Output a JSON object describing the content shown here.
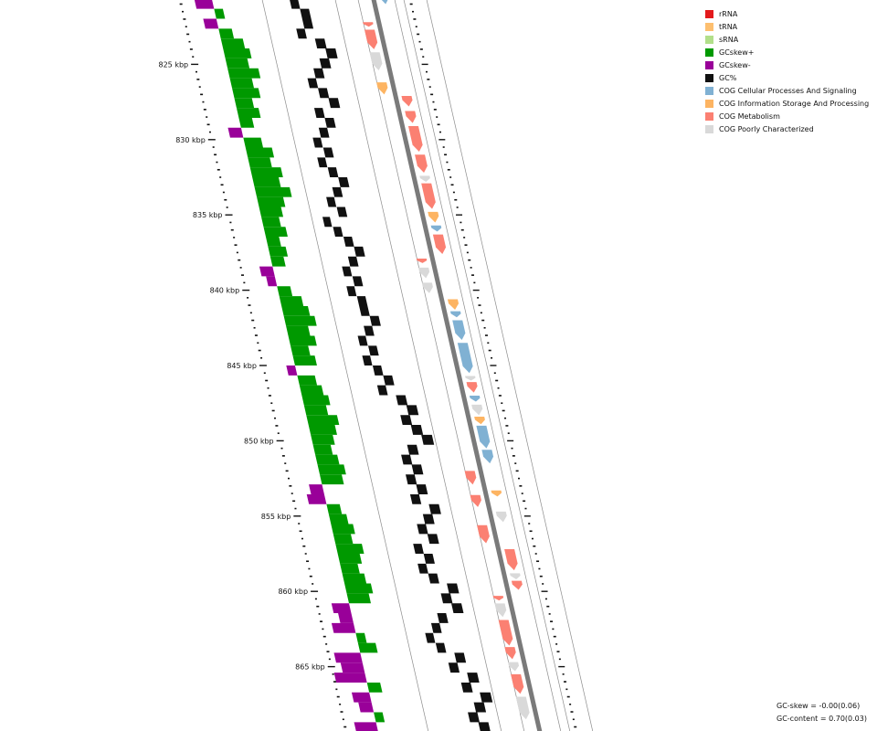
{
  "legend": [
    {
      "name": "rRNA",
      "color": "#e31a1c"
    },
    {
      "name": "tRNA",
      "color": "#fdbf6f"
    },
    {
      "name": "sRNA",
      "color": "#b2df8a"
    },
    {
      "name": "GCskew+",
      "color": "#009900"
    },
    {
      "name": "GCskew-",
      "color": "#990099"
    },
    {
      "name": "GC%",
      "color": "#111111"
    },
    {
      "name": "COG Cellular Processes And Signaling",
      "color": "#80b1d3"
    },
    {
      "name": "COG Information Storage And Processing",
      "color": "#fdb462"
    },
    {
      "name": "COG Metabolism",
      "color": "#fb8072"
    },
    {
      "name": "COG Poorly Characterized",
      "color": "#d9d9d9"
    }
  ],
  "kbp_labels": [
    "825 kbp",
    "830 kbp",
    "835 kbp",
    "840 kbp",
    "845 kbp",
    "850 kbp",
    "855 kbp",
    "860 kbp",
    "865 kbp"
  ],
  "stats": {
    "gc_skew": "GC-skew = -0.00(0.06)",
    "gc_content": "GC-content = 0.70(0.03)"
  },
  "features": [
    {
      "strand": 1,
      "cog": "COG Cellular Processes And Signaling",
      "start": 820.0,
      "end": 821.0
    },
    {
      "strand": -1,
      "cog": "COG Metabolism",
      "start": 822.2,
      "end": 822.5
    },
    {
      "strand": -1,
      "cog": "COG Metabolism",
      "start": 822.7,
      "end": 824.0
    },
    {
      "strand": -1,
      "cog": "COG Poorly Characterized",
      "start": 824.2,
      "end": 825.4
    },
    {
      "strand": -1,
      "cog": "COG Information Storage And Processing",
      "start": 826.2,
      "end": 827.0
    },
    {
      "strand": 1,
      "cog": "COG Metabolism",
      "start": 827.1,
      "end": 827.8
    },
    {
      "strand": 1,
      "cog": "COG Metabolism",
      "start": 828.1,
      "end": 828.9
    },
    {
      "strand": 1,
      "cog": "COG Metabolism",
      "start": 829.1,
      "end": 830.8
    },
    {
      "strand": 1,
      "cog": "COG Metabolism",
      "start": 831.0,
      "end": 832.2
    },
    {
      "strand": 1,
      "cog": "COG Poorly Characterized",
      "start": 832.4,
      "end": 832.8
    },
    {
      "strand": 1,
      "cog": "COG Metabolism",
      "start": 832.9,
      "end": 834.6
    },
    {
      "strand": 1,
      "cog": "COG Information Storage And Processing",
      "start": 834.8,
      "end": 835.5
    },
    {
      "strand": 1,
      "cog": "COG Cellular Processes And Signaling",
      "start": 835.7,
      "end": 836.1
    },
    {
      "strand": 1,
      "cog": "COG Metabolism",
      "start": 836.3,
      "end": 837.6
    },
    {
      "strand": -1,
      "cog": "COG Metabolism",
      "start": 837.9,
      "end": 838.2
    },
    {
      "strand": -1,
      "cog": "COG Poorly Characterized",
      "start": 838.5,
      "end": 839.2
    },
    {
      "strand": -1,
      "cog": "COG Poorly Characterized",
      "start": 839.5,
      "end": 840.2
    },
    {
      "strand": 1,
      "cog": "COG Information Storage And Processing",
      "start": 840.6,
      "end": 841.3
    },
    {
      "strand": 1,
      "cog": "COG Cellular Processes And Signaling",
      "start": 841.4,
      "end": 841.8
    },
    {
      "strand": 1,
      "cog": "COG Cellular Processes And Signaling",
      "start": 842.0,
      "end": 843.3
    },
    {
      "strand": 1,
      "cog": "COG Cellular Processes And Signaling",
      "start": 843.5,
      "end": 845.5
    },
    {
      "strand": 1,
      "cog": "COG Poorly Characterized",
      "start": 845.7,
      "end": 846.0
    },
    {
      "strand": 1,
      "cog": "COG Metabolism",
      "start": 846.1,
      "end": 846.8
    },
    {
      "strand": 1,
      "cog": "COG Cellular Processes And Signaling",
      "start": 847.0,
      "end": 847.4
    },
    {
      "strand": 1,
      "cog": "COG Poorly Characterized",
      "start": 847.6,
      "end": 848.3
    },
    {
      "strand": 1,
      "cog": "COG Information Storage And Processing",
      "start": 848.4,
      "end": 848.9
    },
    {
      "strand": 1,
      "cog": "COG Cellular Processes And Signaling",
      "start": 849.0,
      "end": 850.5
    },
    {
      "strand": 1,
      "cog": "COG Cellular Processes And Signaling",
      "start": 850.6,
      "end": 851.5
    },
    {
      "strand": -1,
      "cog": "COG Metabolism",
      "start": 852.0,
      "end": 852.9
    },
    {
      "strand": 1,
      "cog": "COG Information Storage And Processing",
      "start": 853.3,
      "end": 853.7
    },
    {
      "strand": -1,
      "cog": "COG Metabolism",
      "start": 853.6,
      "end": 854.4
    },
    {
      "strand": 1,
      "cog": "COG Poorly Characterized",
      "start": 854.7,
      "end": 855.4
    },
    {
      "strand": -1,
      "cog": "COG Metabolism",
      "start": 855.6,
      "end": 856.8
    },
    {
      "strand": 1,
      "cog": "COG Metabolism",
      "start": 857.2,
      "end": 858.6
    },
    {
      "strand": 1,
      "cog": "COG Poorly Characterized",
      "start": 858.8,
      "end": 859.2
    },
    {
      "strand": 1,
      "cog": "COG Metabolism",
      "start": 859.3,
      "end": 859.9
    },
    {
      "strand": -1,
      "cog": "COG Metabolism",
      "start": 860.3,
      "end": 860.6
    },
    {
      "strand": -1,
      "cog": "COG Poorly Characterized",
      "start": 860.8,
      "end": 861.7
    },
    {
      "strand": -1,
      "cog": "COG Metabolism",
      "start": 861.9,
      "end": 863.6
    },
    {
      "strand": -1,
      "cog": "COG Metabolism",
      "start": 863.7,
      "end": 864.5
    },
    {
      "strand": -1,
      "cog": "COG Poorly Characterized",
      "start": 864.7,
      "end": 865.3
    },
    {
      "strand": -1,
      "cog": "COG Metabolism",
      "start": 865.5,
      "end": 866.8
    },
    {
      "strand": -1,
      "cog": "COG Poorly Characterized",
      "start": 867.0,
      "end": 868.5
    }
  ],
  "gc_skew": [
    -0.06,
    -0.04,
    0.02,
    -0.03,
    0.03,
    0.05,
    0.06,
    0.05,
    0.07,
    0.05,
    0.06,
    0.04,
    0.05,
    0.03,
    -0.03,
    0.04,
    0.06,
    0.05,
    0.07,
    0.06,
    0.08,
    0.06,
    0.05,
    0.04,
    0.05,
    0.03,
    0.04,
    0.03,
    -0.03,
    -0.02,
    0.03,
    0.05,
    0.06,
    0.07,
    0.05,
    0.06,
    0.04,
    0.05,
    -0.02,
    0.04,
    0.05,
    0.06,
    0.05,
    0.07,
    0.06,
    0.05,
    0.04,
    0.05,
    0.06,
    0.05,
    -0.03,
    -0.04,
    0.03,
    0.04,
    0.05,
    0.04,
    0.06,
    0.05,
    0.04,
    0.05,
    0.06,
    0.05,
    -0.04,
    -0.03,
    -0.05,
    0.02,
    0.04,
    -0.06,
    -0.05,
    -0.07,
    0.03,
    -0.04,
    -0.03,
    0.02,
    -0.05,
    -0.06
  ],
  "gc_percent": [
    0.69,
    0.7,
    0.71,
    0.71,
    0.7,
    0.72,
    0.73,
    0.72,
    0.71,
    0.7,
    0.71,
    0.72,
    0.7,
    0.71,
    0.7,
    0.69,
    0.7,
    0.69,
    0.7,
    0.71,
    0.7,
    0.69,
    0.7,
    0.68,
    0.69,
    0.7,
    0.71,
    0.7,
    0.69,
    0.7,
    0.69,
    0.7,
    0.7,
    0.71,
    0.7,
    0.69,
    0.7,
    0.69,
    0.7,
    0.71,
    0.7,
    0.72,
    0.73,
    0.72,
    0.73,
    0.74,
    0.72,
    0.71,
    0.72,
    0.71,
    0.72,
    0.71,
    0.73,
    0.72,
    0.71,
    0.72,
    0.7,
    0.71,
    0.7,
    0.71,
    0.73,
    0.72,
    0.73,
    0.71,
    0.7,
    0.69,
    0.7,
    0.72,
    0.71,
    0.73,
    0.72,
    0.74,
    0.73,
    0.72,
    0.73,
    0.74
  ]
}
